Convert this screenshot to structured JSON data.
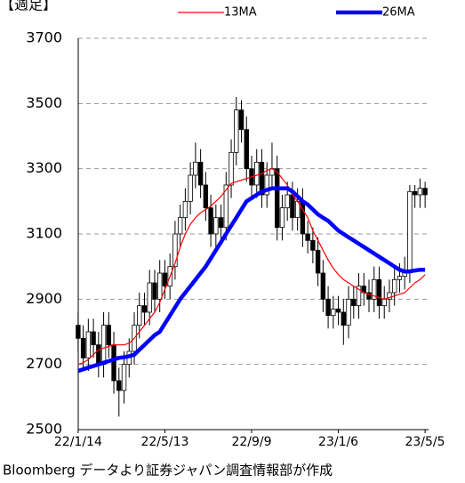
{
  "chart_data": {
    "type": "candlestick",
    "title": "【週足】",
    "source": "Bloomberg データより証券ジャパン調査情報部が作成",
    "categories": [
      "22/1/14",
      null,
      null,
      null,
      null,
      null,
      null,
      null,
      null,
      null,
      null,
      null,
      null,
      null,
      null,
      null,
      null,
      "22/5/13",
      null,
      null,
      null,
      null,
      null,
      null,
      null,
      null,
      null,
      null,
      null,
      null,
      null,
      null,
      null,
      null,
      "22/9/9",
      null,
      null,
      null,
      null,
      null,
      null,
      null,
      null,
      null,
      null,
      null,
      null,
      null,
      null,
      null,
      null,
      "23/1/6",
      null,
      null,
      null,
      null,
      null,
      null,
      null,
      null,
      null,
      null,
      null,
      null,
      null,
      null,
      null,
      null,
      "23/5/5"
    ],
    "open": [
      2820,
      2780,
      2720,
      2800,
      2760,
      2700,
      2820,
      2760,
      2650,
      2620,
      2700,
      2740,
      2820,
      2880,
      2860,
      2950,
      2900,
      2980,
      2940,
      3000,
      3100,
      3150,
      3200,
      3280,
      3320,
      3250,
      3180,
      3100,
      3150,
      3120,
      3250,
      3350,
      3480,
      3420,
      3300,
      3250,
      3320,
      3220,
      3280,
      3300,
      3120,
      3180,
      3220,
      3150,
      3200,
      3100,
      3080,
      3050,
      2980,
      2900,
      2850,
      2870,
      2860,
      2820,
      2900,
      2880,
      2940,
      2920,
      2900,
      2960,
      2880,
      2900,
      2920,
      2960,
      2970,
      2990,
      3230,
      3220,
      3240
    ],
    "high": [
      2860,
      2820,
      2840,
      2840,
      2800,
      2860,
      2860,
      2800,
      2690,
      2740,
      2780,
      2860,
      2920,
      2920,
      2990,
      2990,
      3020,
      3020,
      3040,
      3140,
      3190,
      3240,
      3320,
      3380,
      3360,
      3290,
      3220,
      3190,
      3190,
      3290,
      3390,
      3520,
      3510,
      3460,
      3340,
      3360,
      3360,
      3320,
      3380,
      3340,
      3220,
      3260,
      3260,
      3240,
      3240,
      3140,
      3120,
      3090,
      3020,
      2940,
      2910,
      2910,
      2900,
      2940,
      2940,
      2980,
      2980,
      2960,
      3000,
      3000,
      2940,
      2960,
      3000,
      3010,
      3030,
      3250,
      3250,
      3270,
      3260
    ],
    "low": [
      2740,
      2680,
      2680,
      2720,
      2660,
      2660,
      2720,
      2610,
      2540,
      2580,
      2660,
      2700,
      2780,
      2820,
      2820,
      2860,
      2860,
      2900,
      2900,
      2960,
      3060,
      3110,
      3160,
      3240,
      3210,
      3140,
      3060,
      3060,
      3080,
      3080,
      3210,
      3310,
      3380,
      3260,
      3210,
      3210,
      3180,
      3180,
      3240,
      3080,
      3080,
      3140,
      3110,
      3110,
      3060,
      3040,
      3010,
      2940,
      2860,
      2810,
      2810,
      2820,
      2760,
      2780,
      2840,
      2840,
      2880,
      2860,
      2860,
      2840,
      2840,
      2860,
      2880,
      2920,
      2930,
      2950,
      3180,
      3180,
      3180
    ],
    "close": [
      2780,
      2720,
      2800,
      2760,
      2700,
      2820,
      2760,
      2650,
      2620,
      2700,
      2740,
      2820,
      2880,
      2860,
      2950,
      2900,
      2980,
      2940,
      3000,
      3100,
      3150,
      3200,
      3280,
      3320,
      3250,
      3180,
      3100,
      3150,
      3120,
      3250,
      3350,
      3480,
      3420,
      3300,
      3250,
      3320,
      3220,
      3280,
      3300,
      3120,
      3180,
      3220,
      3150,
      3200,
      3100,
      3080,
      3050,
      2980,
      2900,
      2850,
      2870,
      2860,
      2820,
      2900,
      2880,
      2940,
      2920,
      2900,
      2960,
      2880,
      2900,
      2920,
      2960,
      2970,
      2990,
      3230,
      3220,
      3240,
      3220
    ],
    "series": [
      {
        "name": "13MA",
        "color": "#ff0000",
        "values": [
          2700,
          2705,
          2715,
          2730,
          2745,
          2750,
          2755,
          2760,
          2760,
          2760,
          2765,
          2780,
          2800,
          2820,
          2840,
          2860,
          2890,
          2930,
          2970,
          3010,
          3060,
          3100,
          3130,
          3150,
          3165,
          3175,
          3185,
          3200,
          3215,
          3235,
          3255,
          3260,
          3265,
          3270,
          3275,
          3280,
          3285,
          3295,
          3300,
          3290,
          3270,
          3250,
          3220,
          3200,
          3175,
          3150,
          3110,
          3080,
          3050,
          3020,
          2995,
          2975,
          2960,
          2950,
          2940,
          2930,
          2920,
          2915,
          2910,
          2905,
          2900,
          2905,
          2910,
          2915,
          2920,
          2935,
          2950,
          2960,
          2975
        ]
      },
      {
        "name": "26MA",
        "color": "#0000ff",
        "values": [
          2680,
          2685,
          2690,
          2695,
          2700,
          2705,
          2710,
          2715,
          2720,
          2722,
          2725,
          2730,
          2745,
          2760,
          2775,
          2790,
          2800,
          2825,
          2850,
          2875,
          2900,
          2920,
          2940,
          2960,
          2980,
          3000,
          3025,
          3050,
          3075,
          3100,
          3125,
          3150,
          3175,
          3200,
          3210,
          3220,
          3230,
          3235,
          3240,
          3240,
          3240,
          3240,
          3230,
          3215,
          3200,
          3190,
          3175,
          3160,
          3150,
          3140,
          3125,
          3110,
          3100,
          3090,
          3080,
          3070,
          3060,
          3050,
          3040,
          3030,
          3020,
          3010,
          3000,
          2990,
          2985,
          2985,
          2988,
          2990,
          2990
        ]
      }
    ],
    "ylim": [
      2500,
      3700
    ],
    "yticks": [
      2500,
      2700,
      2900,
      3100,
      3300,
      3500,
      3700
    ],
    "grid": true
  }
}
